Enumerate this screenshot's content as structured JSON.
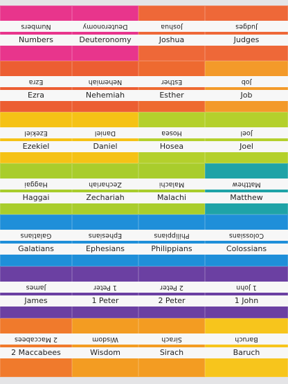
{
  "rows": [
    {
      "labels": [
        "Numbers",
        "Deuteronomy",
        "Joshua",
        "Judges"
      ]
    },
    {
      "labels": [
        "Ezra",
        "Nehemiah",
        "Esther",
        "Job"
      ]
    },
    {
      "labels": [
        "Ezekiel",
        "Daniel",
        "Hosea",
        "Joel"
      ]
    },
    {
      "labels": [
        "Haggai",
        "Zechariah",
        "Malachi",
        "Matthew"
      ]
    },
    {
      "labels": [
        "Galatians",
        "Ephesians",
        "Philippians",
        "Colossians"
      ]
    },
    {
      "labels": [
        "James",
        "1 Peter",
        "2 Peter",
        "1 John"
      ]
    },
    {
      "labels": [
        "2 Maccabees",
        "Wisdom",
        "Sirach",
        "Baruch"
      ]
    }
  ]
}
